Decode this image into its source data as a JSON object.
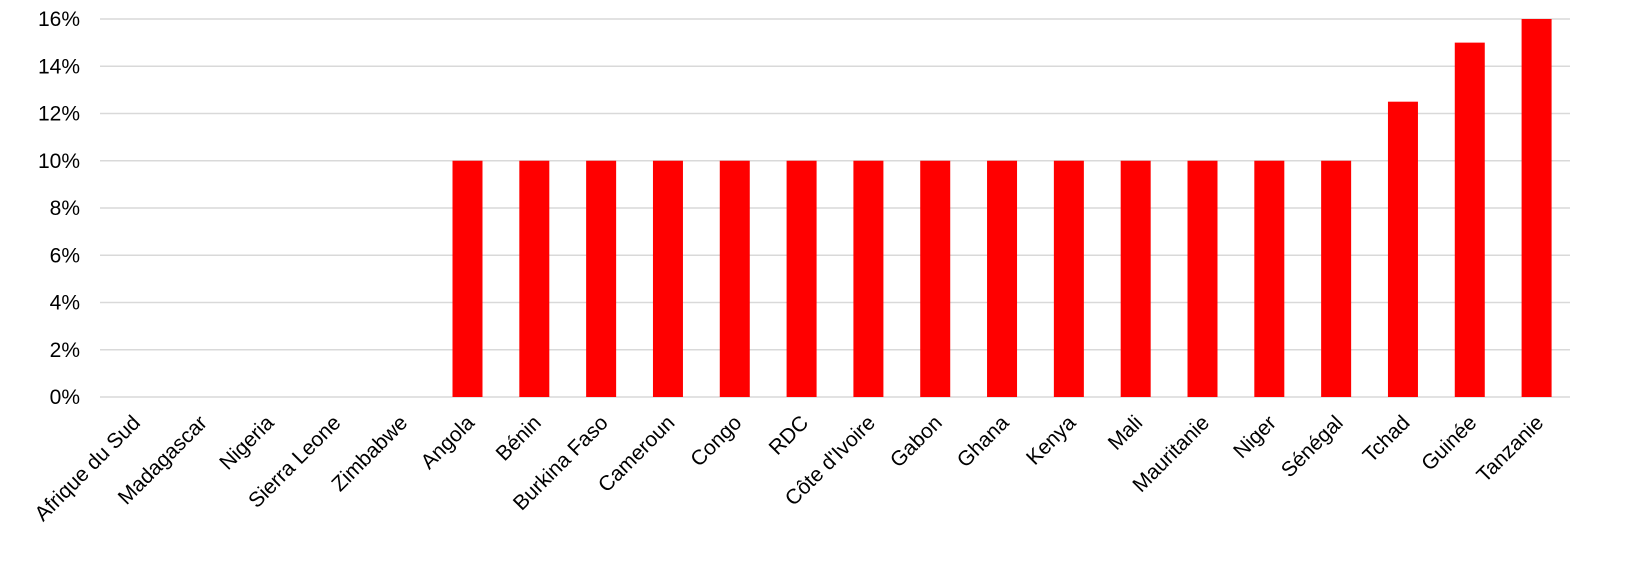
{
  "chart_data": {
    "type": "bar",
    "title": "",
    "xlabel": "",
    "ylabel": "",
    "categories": [
      "Afrique du Sud",
      "Madagascar",
      "Nigeria",
      "Sierra Leone",
      "Zimbabwe",
      "Angola",
      "Bénin",
      "Burkina Faso",
      "Cameroun",
      "Congo",
      "RDC",
      "Côte d'Ivoire",
      "Gabon",
      "Ghana",
      "Kenya",
      "Mali",
      "Mauritanie",
      "Niger",
      "Sénégal",
      "Tchad",
      "Guinée",
      "Tanzanie"
    ],
    "values": [
      0,
      0,
      0,
      0,
      0,
      10,
      10,
      10,
      10,
      10,
      10,
      10,
      10,
      10,
      10,
      10,
      10,
      10,
      10,
      12.5,
      15,
      16
    ],
    "ylim": [
      0,
      16
    ],
    "yticks": [
      0,
      2,
      4,
      6,
      8,
      10,
      12,
      14,
      16
    ],
    "ytick_labels": [
      "0%",
      "2%",
      "4%",
      "6%",
      "8%",
      "10%",
      "12%",
      "14%",
      "16%"
    ],
    "grid": true,
    "legend": "none",
    "bar_color": "#ff0000",
    "grid_color": "#d9d9d9"
  }
}
